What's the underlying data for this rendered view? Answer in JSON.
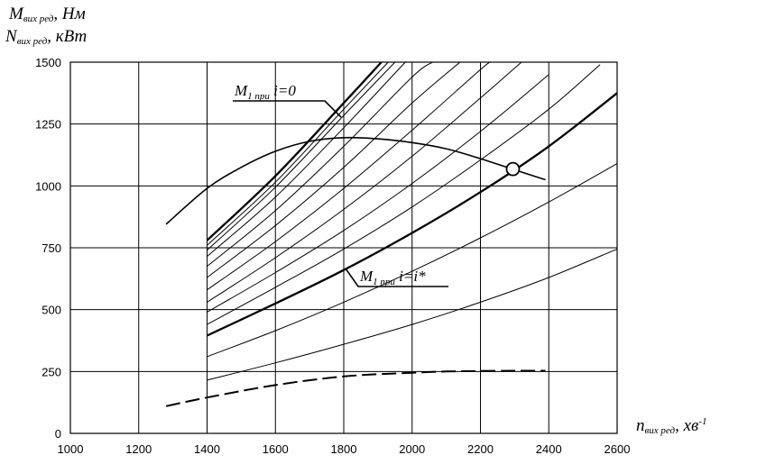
{
  "chart_data": {
    "type": "line",
    "ylabel_1_main": "M",
    "ylabel_1_sub": "вих ред",
    "ylabel_1_unit": ", Нм",
    "ylabel_2_main": "N",
    "ylabel_2_sub": "вих ред",
    "ylabel_2_unit": ", кВт",
    "xlabel_main": "n",
    "xlabel_sub": "вих ред",
    "xlabel_unit": ", хв",
    "xlabel_exp": "-1",
    "xlim": [
      1000,
      2600
    ],
    "ylim": [
      0,
      1500
    ],
    "x_ticks": [
      "1000",
      "1200",
      "1400",
      "1600",
      "1800",
      "2000",
      "2200",
      "2400",
      "2600"
    ],
    "y_ticks": [
      "0",
      "250",
      "500",
      "750",
      "1000",
      "1250",
      "1500"
    ],
    "grid": true,
    "annotations": {
      "m1_i0_main": "M",
      "m1_i0_idx": "1",
      "m1_i0_sub": " при",
      "m1_i0_cond": " i=0",
      "m1_istar_main": "M",
      "m1_istar_idx": "1",
      "m1_istar_sub": " при",
      "m1_istar_cond": " i=i*"
    },
    "series": [
      {
        "style": "thin",
        "x": [
          1400,
          1600,
          1800,
          2000,
          2200,
          2400,
          2600
        ],
        "y": [
          215,
          285,
          360,
          440,
          530,
          630,
          745
        ]
      },
      {
        "style": "thin",
        "x": [
          1400,
          1600,
          1800,
          2000,
          2200,
          2400,
          2600
        ],
        "y": [
          310,
          415,
          530,
          655,
          790,
          935,
          1090
        ]
      },
      {
        "style": "thick",
        "x": [
          1400,
          1600,
          1800,
          2000,
          2200,
          2400,
          2600
        ],
        "y": [
          395,
          525,
          660,
          810,
          975,
          1160,
          1375
        ]
      },
      {
        "style": "thin",
        "x": [
          1400,
          1600,
          1800,
          2000,
          2200,
          2400,
          2550
        ],
        "y": [
          440,
          590,
          745,
          915,
          1105,
          1310,
          1490
        ]
      },
      {
        "style": "thin",
        "x": [
          1400,
          1600,
          1800,
          2000,
          2200,
          2400
        ],
        "y": [
          490,
          650,
          820,
          1010,
          1220,
          1450
        ]
      },
      {
        "style": "thin",
        "x": [
          1400,
          1600,
          1800,
          2000,
          2200,
          2320
        ],
        "y": [
          530,
          710,
          905,
          1120,
          1355,
          1500
        ]
      },
      {
        "style": "thin",
        "x": [
          1400,
          1600,
          1800,
          2000,
          2200,
          2230
        ],
        "y": [
          580,
          775,
          990,
          1225,
          1470,
          1500
        ]
      },
      {
        "style": "thin",
        "x": [
          1400,
          1600,
          1800,
          2000,
          2140
        ],
        "y": [
          630,
          840,
          1075,
          1335,
          1500
        ]
      },
      {
        "style": "thin",
        "x": [
          1400,
          1600,
          1800,
          2000,
          2060
        ],
        "y": [
          675,
          900,
          1160,
          1440,
          1500
        ]
      },
      {
        "style": "thin",
        "x": [
          1400,
          1600,
          1800,
          1980
        ],
        "y": [
          715,
          955,
          1235,
          1500
        ]
      },
      {
        "style": "thin",
        "x": [
          1400,
          1600,
          1800,
          1950
        ],
        "y": [
          740,
          995,
          1285,
          1500
        ]
      },
      {
        "style": "thin",
        "x": [
          1400,
          1600,
          1800,
          1930
        ],
        "y": [
          760,
          1015,
          1310,
          1500
        ]
      },
      {
        "style": "thick",
        "x": [
          1400,
          1600,
          1800,
          1910
        ],
        "y": [
          780,
          1040,
          1335,
          1500
        ]
      },
      {
        "style": "medium",
        "x": [
          1280,
          1400,
          1500,
          1600,
          1700,
          1800,
          1900,
          2000,
          2100,
          2200,
          2300,
          2390
        ],
        "y": [
          845,
          990,
          1075,
          1140,
          1180,
          1195,
          1190,
          1175,
          1150,
          1110,
          1065,
          1025
        ]
      },
      {
        "style": "dashed",
        "x": [
          1280,
          1400,
          1600,
          1800,
          2000,
          2100,
          2200,
          2300,
          2390
        ],
        "y": [
          110,
          145,
          195,
          230,
          245,
          250,
          252,
          253,
          253
        ]
      }
    ],
    "markers": [
      {
        "x": 2295,
        "y": 1068
      }
    ]
  }
}
